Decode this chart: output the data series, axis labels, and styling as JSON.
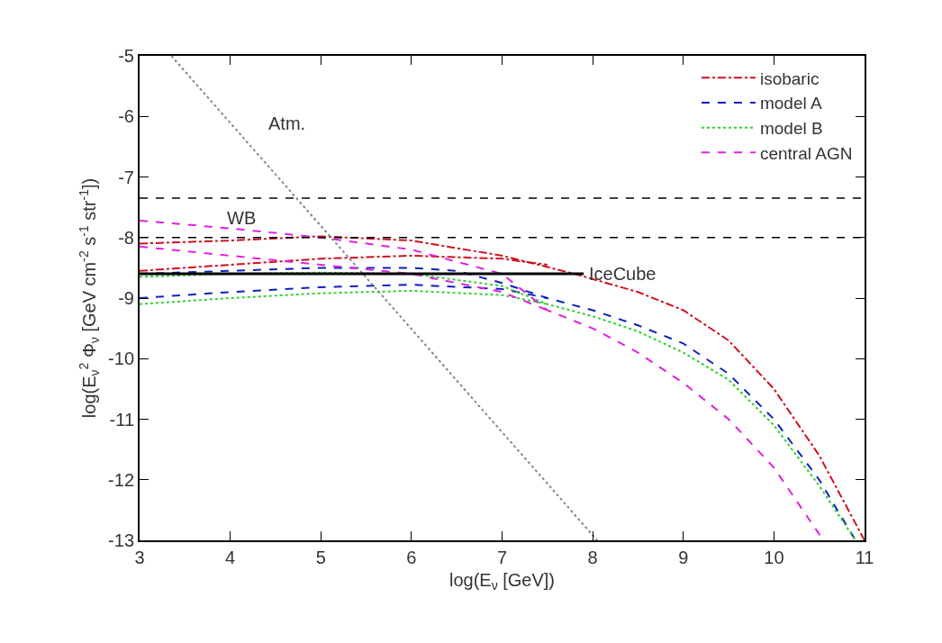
{
  "chart_data": {
    "type": "line",
    "xlabel": "log(E$_{ν}$ [GeV])",
    "ylabel": "log(E$_{ν}$$^{2}$ Φ$_{ν}$ [GeV cm$^{-2}$ s$^{-1}$ str$^{-1}$])",
    "xlim": [
      3,
      11
    ],
    "xticks": [
      3,
      4,
      5,
      6,
      7,
      8,
      9,
      10,
      11
    ],
    "ylim": [
      -13,
      -5
    ],
    "yticks": [
      -13,
      -12,
      -11,
      -10,
      -9,
      -8,
      -7,
      -6,
      -5
    ],
    "legend": "top right",
    "marker": "none",
    "series": [
      {
        "name": "isobaric",
        "color": "#d01020",
        "line_style": "dashdot",
        "x": [
          3,
          4,
          5,
          6,
          7,
          7.8,
          8.5,
          9,
          9.5,
          10,
          10.5,
          11
        ],
        "values": [
          -8.1,
          -8.05,
          -7.98,
          -8.05,
          -8.3,
          -8.6,
          -8.9,
          -9.2,
          -9.7,
          -10.5,
          -11.6,
          -13
        ]
      },
      {
        "color": "#d01020",
        "line_style": "dashdot",
        "x": [
          3,
          4,
          5,
          6,
          7,
          7.5
        ],
        "values": [
          -8.55,
          -8.45,
          -8.35,
          -8.3,
          -8.35,
          -8.45
        ]
      },
      {
        "name": "model A",
        "color": "#1020c0",
        "line_style": "dashed",
        "x": [
          3,
          4,
          5,
          6,
          6.5,
          7,
          7.5,
          8,
          8.5,
          9,
          9.5,
          10,
          10.5,
          10.9
        ],
        "values": [
          -8.6,
          -8.55,
          -8.5,
          -8.5,
          -8.55,
          -8.75,
          -9.0,
          -9.2,
          -9.45,
          -9.75,
          -10.25,
          -11.0,
          -12.0,
          -13
        ]
      },
      {
        "color": "#1020c0",
        "line_style": "dashed",
        "x": [
          3,
          4,
          5,
          6,
          7,
          7.5
        ],
        "values": [
          -9.0,
          -8.9,
          -8.82,
          -8.78,
          -8.85,
          -9.0
        ]
      },
      {
        "name": "model B",
        "color": "#30d030",
        "line_style": "dotted",
        "x": [
          3,
          4,
          5,
          6,
          7,
          7.5,
          8,
          8.5,
          9,
          9.5,
          10,
          10.5,
          10.9
        ],
        "values": [
          -8.65,
          -8.6,
          -8.58,
          -8.6,
          -8.8,
          -9.1,
          -9.3,
          -9.55,
          -9.9,
          -10.35,
          -11.1,
          -12.1,
          -13
        ]
      },
      {
        "color": "#30d030",
        "line_style": "dotted",
        "x": [
          3,
          4,
          5,
          6,
          7,
          7.5
        ],
        "values": [
          -9.1,
          -9.0,
          -8.92,
          -8.88,
          -8.95,
          -9.1
        ]
      },
      {
        "name": "central AGN",
        "color": "#e020e0",
        "line_style": "dashed",
        "x": [
          3,
          4,
          5,
          6,
          7,
          7.5,
          8,
          8.5,
          9,
          9.5,
          10,
          10.5,
          10.55
        ],
        "values": [
          -7.72,
          -7.85,
          -8.0,
          -8.2,
          -8.6,
          -9.2,
          -9.5,
          -9.9,
          -10.4,
          -11.0,
          -11.8,
          -12.9,
          -13
        ]
      },
      {
        "color": "#e020e0",
        "line_style": "dashed",
        "x": [
          3,
          4,
          5,
          6,
          7,
          7.5
        ],
        "values": [
          -8.15,
          -8.3,
          -8.45,
          -8.6,
          -8.9,
          -9.2
        ]
      },
      {
        "name": "Atm.",
        "color": "#888888",
        "line_style": "dotted",
        "x": [
          3.35,
          8.05
        ],
        "values": [
          -5,
          -13
        ]
      },
      {
        "name": "IceCube",
        "color": "#000000",
        "line_style": "solid",
        "x": [
          3,
          7.9
        ],
        "values": [
          -8.6,
          -8.6
        ]
      }
    ],
    "ref_lines": [
      {
        "axis": "y",
        "value": -7.35,
        "color": "#000000",
        "line_style": "dashed"
      },
      {
        "axis": "y",
        "value": -8.0,
        "color": "#000000",
        "line_style": "dashed"
      }
    ],
    "annotations": [
      "WB"
    ]
  }
}
